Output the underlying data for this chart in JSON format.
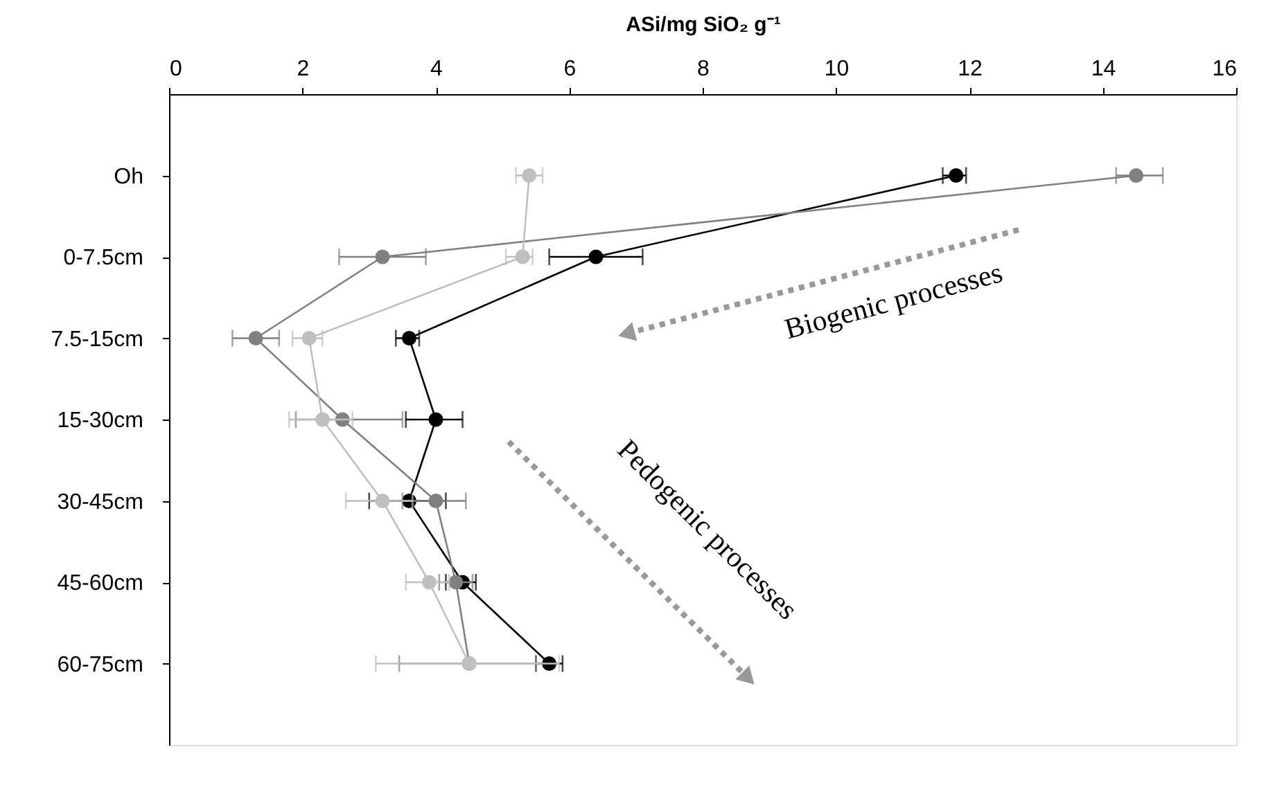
{
  "chart_data": {
    "type": "line",
    "orientation": "horizontal",
    "xlabel": "ASi/mg SiO₂ g⁻¹",
    "categories": [
      "Oh",
      "0-7.5cm",
      "7.5-15cm",
      "15-30cm",
      "30-45cm",
      "45-60cm",
      "60-75cm"
    ],
    "xlim": [
      0,
      16
    ],
    "xticks": [
      0,
      2,
      4,
      6,
      8,
      10,
      12,
      14,
      16
    ],
    "grid": false,
    "marker": "circle",
    "series": [
      {
        "color": "#000000",
        "values": [
          11.8,
          6.4,
          3.6,
          4.0,
          3.6,
          4.4,
          5.7
        ],
        "errors": [
          [
            11.6,
            11.95
          ],
          [
            5.7,
            7.1
          ],
          [
            3.4,
            3.75
          ],
          [
            3.55,
            4.4
          ],
          [
            3.0,
            4.15
          ],
          [
            4.15,
            4.6
          ],
          [
            5.5,
            5.9
          ]
        ]
      },
      {
        "color": "#808080",
        "values": [
          14.5,
          3.2,
          1.3,
          2.6,
          4.0,
          4.3,
          4.5
        ],
        "errors": [
          [
            14.2,
            14.9
          ],
          [
            2.55,
            3.85
          ],
          [
            0.95,
            1.65
          ],
          [
            1.9,
            3.5
          ],
          [
            3.5,
            4.45
          ],
          [
            4.05,
            4.55
          ],
          [
            3.45,
            5.5
          ]
        ]
      },
      {
        "color": "#bfbfbf",
        "values": [
          5.4,
          5.3,
          2.1,
          2.3,
          3.2,
          3.9,
          4.5
        ],
        "errors": [
          [
            5.2,
            5.6
          ],
          [
            5.05,
            5.45
          ],
          [
            1.85,
            2.3
          ],
          [
            1.8,
            2.75
          ],
          [
            2.65,
            3.65
          ],
          [
            3.55,
            4.2
          ],
          [
            3.1,
            5.85
          ]
        ]
      }
    ],
    "annotations": [
      "Biogenic processes",
      "Pedogenic processes"
    ]
  }
}
